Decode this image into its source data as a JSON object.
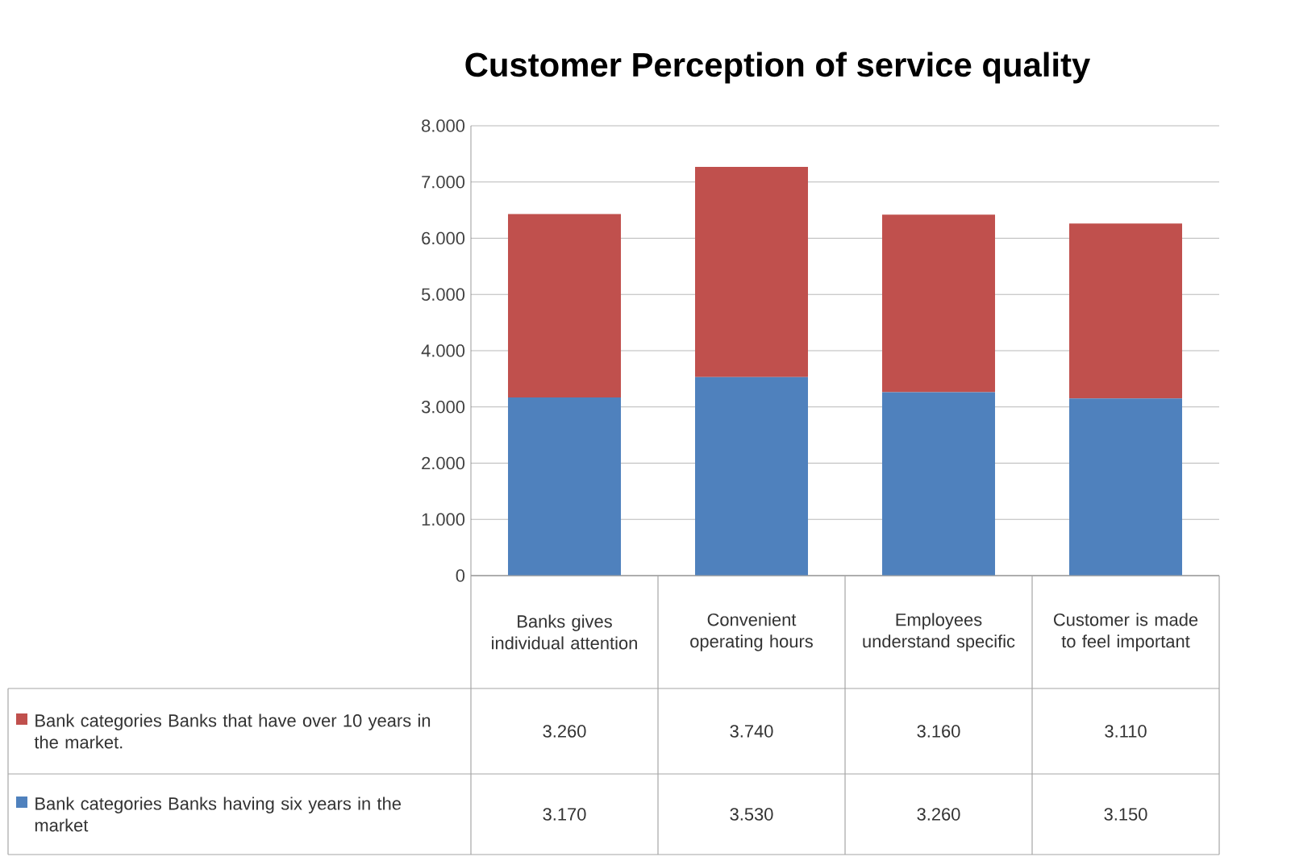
{
  "chart_data": {
    "type": "bar",
    "title": "Customer  Perception of service quality",
    "stacked": true,
    "categories": [
      "Banks gives individual attention",
      "Convenient operating hours",
      "Employees understand specific",
      "Customer is made to feel important"
    ],
    "series": [
      {
        "name": "Bank categories Banks having six years in the market",
        "color": "#4f81bd",
        "values": [
          3170,
          3530,
          3260,
          3150
        ],
        "value_labels": [
          "3.170",
          "3.530",
          "3.260",
          "3.150"
        ]
      },
      {
        "name": "Bank categories Banks that have over 10 years in the market.",
        "color": "#c0504d",
        "values": [
          3260,
          3740,
          3160,
          3110
        ],
        "value_labels": [
          "3.260",
          "3.740",
          "3.160",
          "3.110"
        ]
      }
    ],
    "ylim": [
      0,
      8000
    ],
    "yticks": [
      0,
      {
        "value": 1000,
        "label": "1.000"
      },
      {
        "value": 2000,
        "label": "2.000"
      },
      {
        "value": 3000,
        "label": "3.000"
      },
      {
        "value": 4000,
        "label": "4.000"
      },
      {
        "value": 5000,
        "label": "5.000"
      },
      {
        "value": 6000,
        "label": "6.000"
      },
      {
        "value": 7000,
        "label": "7.000"
      },
      {
        "value": 8000,
        "label": "8.000"
      }
    ],
    "grid": "y",
    "legend": "bottom left"
  }
}
